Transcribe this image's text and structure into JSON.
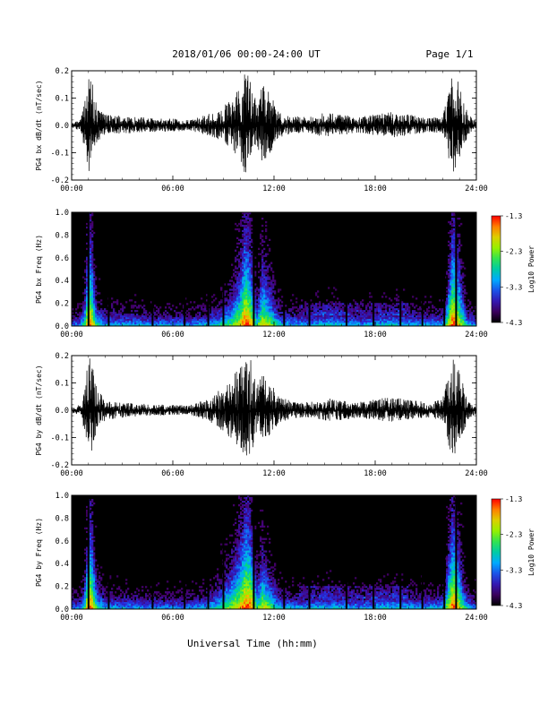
{
  "header": {
    "title": "2018/01/06  00:00-24:00 UT",
    "page": "Page 1/1"
  },
  "footer": {
    "xlabel": "Universal Time (hh:mm)"
  },
  "chart_data": [
    {
      "type": "line",
      "ylabel": "PG4 bx dB/dt (nT/sec)",
      "ylim": [
        -0.2,
        0.2
      ],
      "yticks": [
        "-0.2",
        "-0.1",
        "0.0",
        "0.1",
        "0.2"
      ],
      "xlim": [
        0,
        24
      ],
      "xticks": [
        "00:00",
        "06:00",
        "12:00",
        "18:00",
        "24:00"
      ],
      "envelope": {
        "x": [
          0,
          0.5,
          0.8,
          1.0,
          1.2,
          1.5,
          2.0,
          3.0,
          4.0,
          6.0,
          7.0,
          8.0,
          8.5,
          9.0,
          9.5,
          10.0,
          10.3,
          10.6,
          11.0,
          11.3,
          11.6,
          12.0,
          12.3,
          13.0,
          14.0,
          15.0,
          16.0,
          17.0,
          18.0,
          19.0,
          20.0,
          21.0,
          22.0,
          22.3,
          22.6,
          23.0,
          23.5,
          24.0
        ],
        "amplitude": [
          0.012,
          0.02,
          0.1,
          0.2,
          0.17,
          0.07,
          0.04,
          0.035,
          0.03,
          0.025,
          0.02,
          0.04,
          0.05,
          0.07,
          0.1,
          0.15,
          0.2,
          0.17,
          0.08,
          0.15,
          0.13,
          0.09,
          0.05,
          0.035,
          0.03,
          0.05,
          0.04,
          0.03,
          0.04,
          0.05,
          0.04,
          0.03,
          0.03,
          0.12,
          0.2,
          0.15,
          0.04,
          0.015
        ]
      }
    },
    {
      "type": "heatmap",
      "ylabel": "PG4 bx Freq (Hz)",
      "ylim": [
        0,
        1.0
      ],
      "yticks": [
        "0.0",
        "0.2",
        "0.4",
        "0.6",
        "0.8",
        "1.0"
      ],
      "xlim": [
        0,
        24
      ],
      "xticks": [
        "00:00",
        "06:00",
        "12:00",
        "18:00",
        "24:00"
      ],
      "colorbar": {
        "label": "Log10 Power",
        "ticks": [
          "-1.3",
          "-2.3",
          "-3.3",
          "-4.3"
        ],
        "range": [
          -4.3,
          -1.3
        ]
      },
      "vertical_lines_hours": [
        1.0,
        2.2,
        4.8,
        6.7,
        8.1,
        9.0,
        10.8,
        12.6,
        14.1,
        16.3,
        17.9,
        19.5,
        20.8,
        22.1,
        22.8
      ]
    },
    {
      "type": "line",
      "ylabel": "PG4 by dB/dt (nT/sec)",
      "ylim": [
        -0.2,
        0.2
      ],
      "yticks": [
        "-0.2",
        "-0.1",
        "0.0",
        "0.1",
        "0.2"
      ],
      "xlim": [
        0,
        24
      ],
      "xticks": [
        "00:00",
        "06:00",
        "12:00",
        "18:00",
        "24:00"
      ],
      "envelope": {
        "x": [
          0,
          0.5,
          0.8,
          1.0,
          1.2,
          1.5,
          2.0,
          3.0,
          4.0,
          6.0,
          7.0,
          8.0,
          8.5,
          9.0,
          9.5,
          10.0,
          10.3,
          10.6,
          11.0,
          11.3,
          11.6,
          12.0,
          12.3,
          13.0,
          14.0,
          15.0,
          16.0,
          17.0,
          18.0,
          19.0,
          20.0,
          21.0,
          22.0,
          22.3,
          22.6,
          23.0,
          23.5,
          24.0
        ],
        "amplitude": [
          0.012,
          0.02,
          0.1,
          0.2,
          0.18,
          0.08,
          0.04,
          0.03,
          0.025,
          0.02,
          0.018,
          0.04,
          0.06,
          0.09,
          0.12,
          0.16,
          0.2,
          0.19,
          0.09,
          0.14,
          0.12,
          0.08,
          0.05,
          0.035,
          0.03,
          0.045,
          0.04,
          0.03,
          0.04,
          0.05,
          0.04,
          0.03,
          0.04,
          0.13,
          0.2,
          0.14,
          0.04,
          0.015
        ]
      }
    },
    {
      "type": "heatmap",
      "ylabel": "PG4 by Freq (Hz)",
      "ylim": [
        0,
        1.0
      ],
      "yticks": [
        "0.0",
        "0.2",
        "0.4",
        "0.6",
        "0.8",
        "1.0"
      ],
      "xlim": [
        0,
        24
      ],
      "xticks": [
        "00:00",
        "06:00",
        "12:00",
        "18:00",
        "24:00"
      ],
      "colorbar": {
        "label": "Log10 Power",
        "ticks": [
          "-1.3",
          "-2.3",
          "-3.3",
          "-4.3"
        ],
        "range": [
          -4.3,
          -1.3
        ]
      },
      "vertical_lines_hours": [
        1.0,
        2.2,
        4.8,
        6.7,
        8.1,
        9.0,
        10.8,
        12.6,
        14.1,
        16.3,
        17.9,
        19.5,
        20.8,
        22.1,
        22.8
      ]
    }
  ]
}
